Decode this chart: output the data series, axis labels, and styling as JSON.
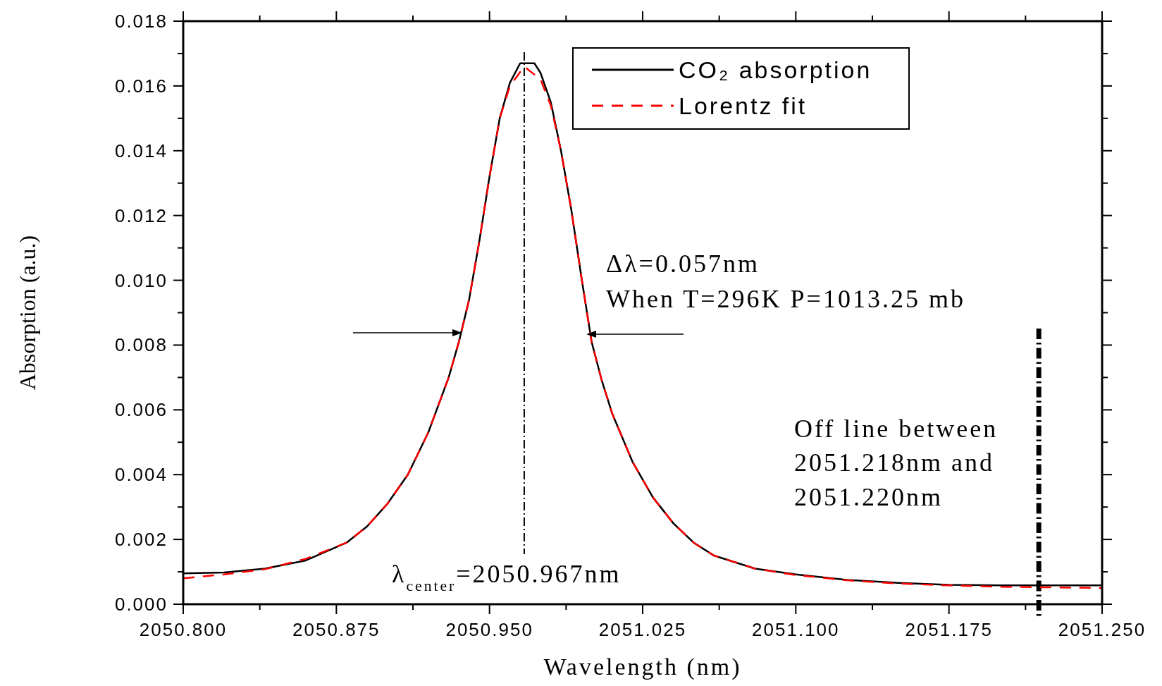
{
  "chart_data": {
    "type": "line",
    "xlabel": "Wavelength (nm)",
    "ylabel": "Absorption (a.u.)",
    "xlim": [
      2050.8,
      2051.25
    ],
    "xticks": [
      {
        "value": 2050.8,
        "label": "2050.800"
      },
      {
        "value": 2050.8375,
        "label": null
      },
      {
        "value": 2050.875,
        "label": "2050.875"
      },
      {
        "value": 2050.9125,
        "label": null
      },
      {
        "value": 2050.95,
        "label": "2050.950"
      },
      {
        "value": 2050.9875,
        "label": null
      },
      {
        "value": 2051.025,
        "label": "2051.025"
      },
      {
        "value": 2051.0625,
        "label": null
      },
      {
        "value": 2051.1,
        "label": "2051.100"
      },
      {
        "value": 2051.1375,
        "label": null
      },
      {
        "value": 2051.175,
        "label": "2051.175"
      },
      {
        "value": 2051.2125,
        "label": null
      },
      {
        "value": 2051.25,
        "label": "2051.250"
      }
    ],
    "ylim": [
      0,
      0.018
    ],
    "yticks": [
      {
        "value": 0,
        "label": "0.000"
      },
      {
        "value": 0.001,
        "label": null
      },
      {
        "value": 0.002,
        "label": "0.002"
      },
      {
        "value": 0.003,
        "label": null
      },
      {
        "value": 0.004,
        "label": "0.004"
      },
      {
        "value": 0.005,
        "label": null
      },
      {
        "value": 0.006,
        "label": "0.006"
      },
      {
        "value": 0.007,
        "label": null
      },
      {
        "value": 0.008,
        "label": "0.008"
      },
      {
        "value": 0.009,
        "label": null
      },
      {
        "value": 0.01,
        "label": "0.010"
      },
      {
        "value": 0.011,
        "label": null
      },
      {
        "value": 0.012,
        "label": "0.012"
      },
      {
        "value": 0.013,
        "label": null
      },
      {
        "value": 0.014,
        "label": "0.014"
      },
      {
        "value": 0.015,
        "label": null
      },
      {
        "value": 0.016,
        "label": "0.016"
      },
      {
        "value": 0.017,
        "label": null
      },
      {
        "value": 0.018,
        "label": "0.018"
      }
    ],
    "legend": "top right",
    "series": [
      {
        "name": "CO₂ absorption",
        "color": "#000000",
        "line_style": "solid",
        "x": [
          2050.8,
          2050.82,
          2050.84,
          2050.86,
          2050.88,
          2050.89,
          2050.9,
          2050.91,
          2050.92,
          2050.93,
          2050.935,
          2050.94,
          2050.945,
          2050.95,
          2050.955,
          2050.96,
          2050.965,
          2050.972,
          2050.975,
          2050.98,
          2050.985,
          2050.99,
          2050.995,
          2051.0,
          2051.005,
          2051.01,
          2051.02,
          2051.03,
          2051.04,
          2051.05,
          2051.06,
          2051.08,
          2051.1,
          2051.125,
          2051.15,
          2051.175,
          2051.2,
          2051.25
        ],
        "values": [
          0.00095,
          0.00098,
          0.0011,
          0.00135,
          0.0019,
          0.0024,
          0.0031,
          0.004,
          0.0053,
          0.007,
          0.0081,
          0.0094,
          0.0112,
          0.0132,
          0.015,
          0.0161,
          0.0167,
          0.0167,
          0.0164,
          0.0155,
          0.014,
          0.0122,
          0.0101,
          0.0081,
          0.0069,
          0.0059,
          0.0044,
          0.0033,
          0.0025,
          0.0019,
          0.0015,
          0.0011,
          0.00092,
          0.00075,
          0.00066,
          0.0006,
          0.00058,
          0.00058
        ]
      },
      {
        "name": "Lorentz fit",
        "color": "#ff0000",
        "line_style": "dashed",
        "x": [
          2050.8,
          2050.82,
          2050.84,
          2050.86,
          2050.88,
          2050.89,
          2050.9,
          2050.91,
          2050.92,
          2050.93,
          2050.935,
          2050.94,
          2050.945,
          2050.95,
          2050.955,
          2050.96,
          2050.967,
          2050.975,
          2050.98,
          2050.985,
          2050.99,
          2050.995,
          2051.0,
          2051.005,
          2051.01,
          2051.02,
          2051.03,
          2051.04,
          2051.05,
          2051.06,
          2051.08,
          2051.1,
          2051.125,
          2051.15,
          2051.175,
          2051.2,
          2051.25
        ],
        "values": [
          0.0008,
          0.00092,
          0.00108,
          0.0014,
          0.0019,
          0.0024,
          0.0031,
          0.004,
          0.0053,
          0.007,
          0.0081,
          0.0094,
          0.0112,
          0.0132,
          0.015,
          0.016,
          0.0166,
          0.0162,
          0.0154,
          0.014,
          0.0122,
          0.0101,
          0.0081,
          0.0069,
          0.0059,
          0.0044,
          0.0033,
          0.0025,
          0.0019,
          0.0015,
          0.0011,
          0.0009,
          0.00074,
          0.00064,
          0.00058,
          0.00054,
          0.0005
        ]
      }
    ],
    "ref_lines": [
      {
        "axis": "x",
        "value": 2050.967,
        "line_style": "dashdot",
        "color": "#000000"
      },
      {
        "axis": "x",
        "value": 2051.219,
        "line_style": "dashdot",
        "color": "#000000"
      }
    ],
    "annotations": [
      "λ$_{center}$=2050.967nm",
      "Δλ=0.057nm",
      "When T=296K P=1013.25 mb",
      "Off line between",
      "2051.218nm and",
      "2051.220nm"
    ]
  }
}
